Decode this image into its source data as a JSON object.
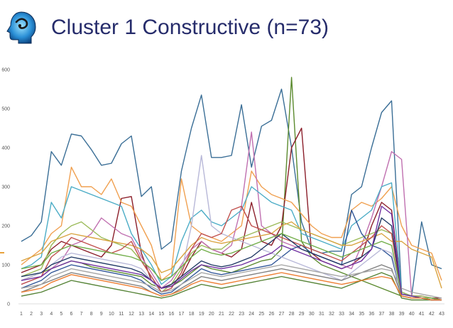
{
  "header": {
    "title": "Cluster 1 Constructive (n=73)",
    "logo_icon": "head-profile-logo-icon"
  },
  "chart_data": {
    "type": "line",
    "title": "",
    "xlabel": "",
    "ylabel": "",
    "ylim": [
      0,
      600
    ],
    "yticks": [
      "0",
      "100",
      "200",
      "300",
      "400",
      "500",
      "600"
    ],
    "grid": false,
    "legend": "none",
    "categories": [
      "1",
      "2",
      "3",
      "4",
      "5",
      "6",
      "7",
      "8",
      "9",
      "10",
      "11",
      "12",
      "13",
      "14",
      "15",
      "16",
      "17",
      "18",
      "19",
      "20",
      "21",
      "22",
      "23",
      "24",
      "25",
      "26",
      "27",
      "28",
      "29",
      "30",
      "31",
      "32",
      "33",
      "34",
      "35",
      "36",
      "37",
      "38",
      "39",
      "40",
      "41",
      "42",
      "43"
    ],
    "series": [
      {
        "color": "#3a6e96",
        "values": [
          160,
          175,
          210,
          390,
          355,
          435,
          430,
          395,
          355,
          360,
          410,
          430,
          275,
          300,
          140,
          160,
          340,
          450,
          535,
          375,
          375,
          380,
          510,
          350,
          455,
          470,
          550,
          400,
          210,
          140,
          130,
          135,
          135,
          280,
          300,
          400,
          490,
          520,
          30,
          20,
          210,
          100,
          90
        ]
      },
      {
        "color": "#5b8a2e",
        "values": [
          60,
          70,
          80,
          90,
          100,
          110,
          105,
          95,
          90,
          85,
          80,
          75,
          70,
          50,
          40,
          45,
          60,
          80,
          100,
          90,
          85,
          80,
          90,
          100,
          110,
          115,
          140,
          580,
          160,
          120,
          100,
          90,
          80,
          70,
          60,
          50,
          40,
          30,
          20,
          15,
          15,
          10,
          10
        ]
      },
      {
        "color": "#8b1e2a",
        "values": [
          80,
          90,
          100,
          140,
          160,
          150,
          140,
          130,
          120,
          150,
          270,
          275,
          130,
          60,
          40,
          50,
          70,
          120,
          160,
          140,
          130,
          120,
          140,
          260,
          160,
          150,
          200,
          400,
          450,
          130,
          110,
          100,
          90,
          100,
          120,
          200,
          260,
          240,
          30,
          20,
          20,
          15,
          15
        ]
      },
      {
        "color": "#f0a050",
        "values": [
          100,
          120,
          140,
          180,
          200,
          350,
          300,
          300,
          280,
          320,
          260,
          250,
          200,
          150,
          60,
          80,
          320,
          200,
          180,
          170,
          160,
          180,
          200,
          340,
          300,
          280,
          270,
          260,
          230,
          200,
          180,
          170,
          170,
          240,
          260,
          250,
          270,
          300,
          200,
          150,
          140,
          130,
          60
        ]
      },
      {
        "color": "#c070b0",
        "values": [
          50,
          60,
          70,
          90,
          110,
          150,
          160,
          180,
          220,
          200,
          180,
          170,
          120,
          80,
          40,
          60,
          100,
          140,
          160,
          140,
          130,
          150,
          250,
          440,
          200,
          180,
          160,
          150,
          140,
          130,
          120,
          110,
          100,
          90,
          150,
          220,
          300,
          390,
          370,
          20,
          20,
          15,
          10
        ]
      },
      {
        "color": "#4bacc6",
        "values": [
          90,
          100,
          120,
          260,
          220,
          300,
          290,
          280,
          270,
          260,
          250,
          180,
          140,
          100,
          50,
          70,
          160,
          220,
          240,
          210,
          200,
          220,
          240,
          300,
          280,
          260,
          250,
          240,
          180,
          170,
          160,
          150,
          140,
          200,
          220,
          240,
          300,
          310,
          30,
          20,
          15,
          15,
          10
        ]
      },
      {
        "color": "#9bbb59",
        "values": [
          70,
          80,
          90,
          150,
          180,
          200,
          210,
          190,
          170,
          160,
          150,
          140,
          110,
          70,
          30,
          50,
          90,
          130,
          150,
          140,
          140,
          160,
          170,
          180,
          190,
          200,
          210,
          200,
          190,
          180,
          170,
          160,
          150,
          160,
          170,
          180,
          190,
          180,
          30,
          20,
          20,
          15,
          10
        ]
      },
      {
        "color": "#2f5597",
        "values": [
          40,
          50,
          60,
          80,
          90,
          100,
          95,
          90,
          85,
          80,
          75,
          70,
          60,
          40,
          25,
          30,
          50,
          70,
          90,
          80,
          75,
          80,
          85,
          90,
          95,
          100,
          120,
          140,
          150,
          130,
          120,
          110,
          100,
          240,
          180,
          150,
          140,
          120,
          20,
          15,
          15,
          10,
          10
        ]
      },
      {
        "color": "#b8b8d8",
        "values": [
          60,
          70,
          80,
          100,
          120,
          130,
          125,
          120,
          115,
          110,
          105,
          100,
          90,
          60,
          30,
          40,
          80,
          200,
          380,
          200,
          180,
          170,
          160,
          150,
          140,
          130,
          120,
          110,
          100,
          90,
          80,
          70,
          60,
          80,
          100,
          120,
          140,
          130,
          20,
          15,
          15,
          10,
          10
        ]
      },
      {
        "color": "#7f7f7f",
        "values": [
          30,
          40,
          50,
          60,
          70,
          80,
          75,
          70,
          65,
          60,
          55,
          50,
          45,
          30,
          20,
          25,
          40,
          55,
          70,
          65,
          60,
          65,
          70,
          75,
          80,
          85,
          90,
          85,
          80,
          75,
          70,
          65,
          60,
          70,
          80,
          90,
          100,
          90,
          20,
          15,
          15,
          10,
          10
        ]
      },
      {
        "color": "#d9a441",
        "values": [
          110,
          120,
          130,
          160,
          170,
          180,
          175,
          170,
          165,
          160,
          155,
          150,
          140,
          120,
          80,
          90,
          120,
          150,
          170,
          160,
          155,
          160,
          165,
          170,
          175,
          180,
          200,
          210,
          190,
          180,
          170,
          160,
          150,
          150,
          160,
          170,
          180,
          160,
          160,
          140,
          130,
          120,
          40
        ]
      },
      {
        "color": "#c0504d",
        "values": [
          50,
          60,
          70,
          120,
          140,
          170,
          160,
          150,
          140,
          130,
          140,
          160,
          110,
          70,
          30,
          40,
          80,
          140,
          180,
          170,
          180,
          240,
          250,
          200,
          190,
          180,
          170,
          160,
          150,
          140,
          130,
          120,
          110,
          130,
          150,
          170,
          200,
          180,
          20,
          15,
          15,
          10,
          10
        ]
      },
      {
        "color": "#548235",
        "values": [
          20,
          25,
          30,
          40,
          50,
          60,
          55,
          50,
          45,
          40,
          35,
          30,
          25,
          20,
          15,
          20,
          30,
          40,
          50,
          45,
          40,
          45,
          50,
          55,
          60,
          65,
          70,
          65,
          60,
          55,
          50,
          45,
          40,
          50,
          60,
          70,
          80,
          70,
          15,
          10,
          10,
          10,
          10
        ]
      },
      {
        "color": "#1f3864",
        "values": [
          70,
          75,
          80,
          100,
          110,
          120,
          115,
          110,
          105,
          100,
          95,
          90,
          80,
          60,
          40,
          50,
          70,
          90,
          110,
          100,
          95,
          100,
          110,
          120,
          140,
          160,
          180,
          160,
          140,
          130,
          120,
          110,
          100,
          110,
          120,
          140,
          220,
          200,
          25,
          20,
          15,
          10,
          10
        ]
      },
      {
        "color": "#a5a5a5",
        "values": [
          40,
          45,
          50,
          70,
          80,
          90,
          85,
          80,
          75,
          70,
          65,
          60,
          55,
          45,
          30,
          35,
          50,
          65,
          80,
          75,
          70,
          75,
          80,
          85,
          90,
          95,
          100,
          95,
          90,
          85,
          80,
          75,
          70,
          75,
          80,
          85,
          90,
          85,
          40,
          30,
          25,
          20,
          15
        ]
      },
      {
        "color": "#70ad47",
        "values": [
          90,
          95,
          100,
          130,
          140,
          150,
          145,
          140,
          135,
          130,
          125,
          120,
          110,
          90,
          60,
          70,
          95,
          120,
          140,
          130,
          125,
          130,
          140,
          150,
          160,
          170,
          180,
          170,
          160,
          150,
          140,
          130,
          120,
          130,
          140,
          150,
          160,
          150,
          25,
          20,
          15,
          15,
          10
        ]
      },
      {
        "color": "#7030a0",
        "values": [
          60,
          65,
          70,
          90,
          100,
          110,
          105,
          100,
          95,
          90,
          85,
          80,
          75,
          60,
          40,
          45,
          65,
          85,
          100,
          95,
          90,
          95,
          100,
          110,
          120,
          130,
          150,
          140,
          130,
          120,
          110,
          100,
          90,
          100,
          110,
          140,
          250,
          230,
          25,
          20,
          15,
          10,
          10
        ]
      },
      {
        "color": "#ed7d31",
        "values": [
          30,
          35,
          40,
          55,
          65,
          75,
          70,
          65,
          60,
          55,
          50,
          45,
          40,
          30,
          20,
          25,
          35,
          50,
          60,
          55,
          50,
          55,
          60,
          65,
          70,
          75,
          80,
          75,
          70,
          65,
          60,
          55,
          50,
          55,
          60,
          65,
          70,
          65,
          20,
          15,
          15,
          10,
          10
        ]
      }
    ]
  }
}
